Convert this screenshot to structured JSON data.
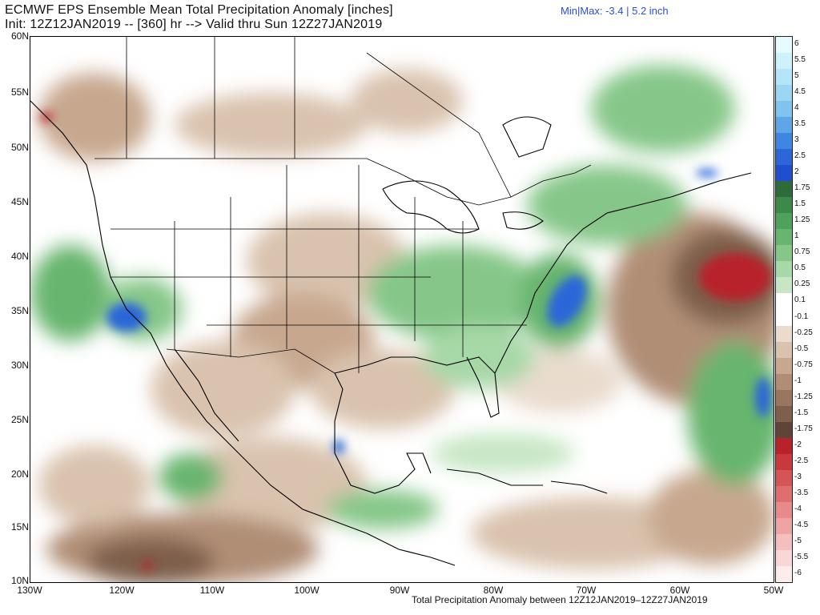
{
  "header": {
    "title_line1": "ECMWF EPS Ensemble Mean Total Precipitation Anomaly [inches]",
    "title_line2": "Init: 12Z12JAN2019 -- [360] hr --> Valid thru Sun 12Z27JAN2019",
    "minmax": "Min|Max: -3.4 | 5.2 inch"
  },
  "footer": {
    "text": "Total Precipitation Anomaly between 12Z12JAN2019–12Z27JAN2019"
  },
  "axes": {
    "lat_labels": [
      "60N",
      "55N",
      "50N",
      "45N",
      "40N",
      "35N",
      "30N",
      "25N",
      "20N",
      "15N",
      "10N"
    ],
    "lon_labels": [
      "130W",
      "120W",
      "110W",
      "100W",
      "90W",
      "80W",
      "70W",
      "60W",
      "50W"
    ]
  },
  "colorbar": {
    "labels": [
      "6",
      "5.5",
      "5",
      "4.5",
      "4",
      "3.5",
      "3",
      "2.5",
      "2",
      "1.75",
      "1.5",
      "1.25",
      "1",
      "0.75",
      "0.5",
      "0.25",
      "0.1",
      "-0.1",
      "-0.25",
      "-0.5",
      "-0.75",
      "-1",
      "-1.25",
      "-1.5",
      "-1.75",
      "-2",
      "-2.5",
      "-3",
      "-3.5",
      "-4",
      "-4.5",
      "-5",
      "-5.5",
      "-6"
    ],
    "colors": [
      "#e6fbfd",
      "#cdf2fb",
      "#b3e6f8",
      "#9bd7f3",
      "#7fc4ee",
      "#5fa6e8",
      "#3f86e2",
      "#2c66d8",
      "#1f4fcf",
      "#2f6b3a",
      "#3c8a4a",
      "#4fa25b",
      "#67b56e",
      "#86c789",
      "#a7d8a7",
      "#c7e7c4",
      "#ffffff",
      "#ffffff",
      "#e9dccd",
      "#d9c3ae",
      "#c7a88f",
      "#b08e76",
      "#98765f",
      "#7e5f4c",
      "#5e4538",
      "#b8232a",
      "#c9383d",
      "#d65455",
      "#df6f6e",
      "#e78a89",
      "#eea4a3",
      "#f4bfbe",
      "#f9d7d6",
      "#fdecec"
    ]
  }
}
